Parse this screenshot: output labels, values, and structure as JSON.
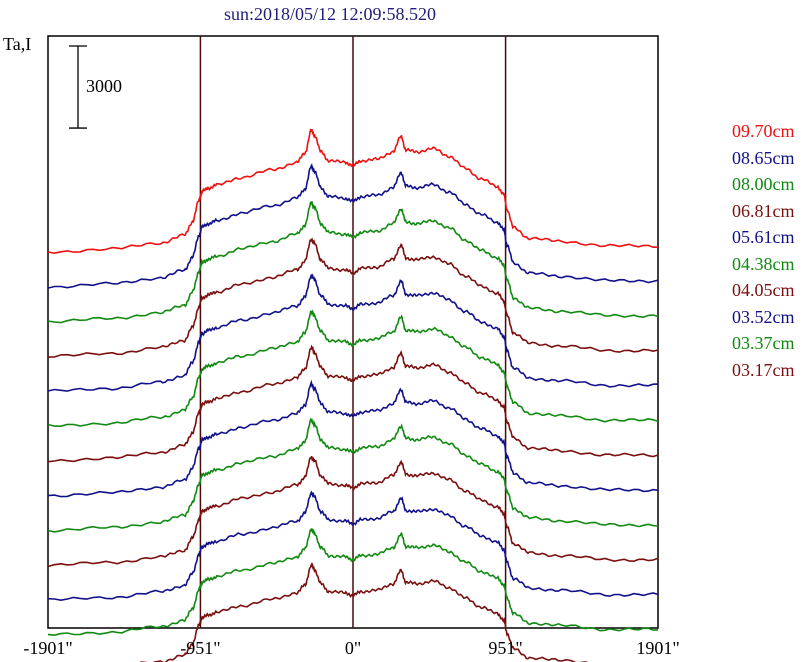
{
  "chart_data": {
    "type": "line",
    "title": "sun:2018/05/12 12:09:58.520",
    "ylabel": "Ta,I",
    "scale_bar_label": "3000",
    "xlim": [
      -1901,
      1901
    ],
    "x_ticks": [
      "-1901\"",
      "-951\"",
      "0\"",
      "951\"",
      "1901\""
    ],
    "x_tick_values": [
      -1901,
      -951,
      0,
      951,
      1901
    ],
    "vertical_lines": [
      -951,
      0,
      951
    ],
    "profile_shape": {
      "x": [
        -1901,
        -1500,
        -1200,
        -1050,
        -1000,
        -960,
        -940,
        -900,
        -850,
        -700,
        -500,
        -350,
        -300,
        -260,
        -240,
        -200,
        -150,
        -50,
        0,
        50,
        150,
        250,
        300,
        330,
        400,
        500,
        600,
        700,
        800,
        900,
        940,
        960,
        1000,
        1100,
        1300,
        1600,
        1901
      ],
      "y": [
        0,
        200,
        600,
        1100,
        2000,
        3400,
        4000,
        4200,
        4400,
        4900,
        5400,
        5900,
        6500,
        8000,
        7700,
        6600,
        6000,
        5900,
        5700,
        6000,
        6100,
        6600,
        7600,
        6700,
        6600,
        6800,
        6300,
        5500,
        4800,
        4300,
        3800,
        2800,
        1600,
        900,
        700,
        400,
        400
      ]
    },
    "series": [
      {
        "name": "09.70cm",
        "color": "#ee1111"
      },
      {
        "name": "08.65cm",
        "color": "#11118a"
      },
      {
        "name": "08.00cm",
        "color": "#118a11"
      },
      {
        "name": "06.81cm",
        "color": "#7a0f0f"
      },
      {
        "name": "05.61cm",
        "color": "#11118a"
      },
      {
        "name": "04.38cm",
        "color": "#118a11"
      },
      {
        "name": "04.05cm",
        "color": "#7a0f0f"
      },
      {
        "name": "03.52cm",
        "color": "#11118a"
      },
      {
        "name": "03.37cm",
        "color": "#118a11"
      },
      {
        "name": "03.17cm",
        "color": "#7a0f0f"
      },
      {
        "name": "",
        "color": "#11118a"
      },
      {
        "name": "",
        "color": "#118a11"
      },
      {
        "name": "",
        "color": "#7a0f0f"
      }
    ],
    "grid": false,
    "legend_position": "right"
  }
}
